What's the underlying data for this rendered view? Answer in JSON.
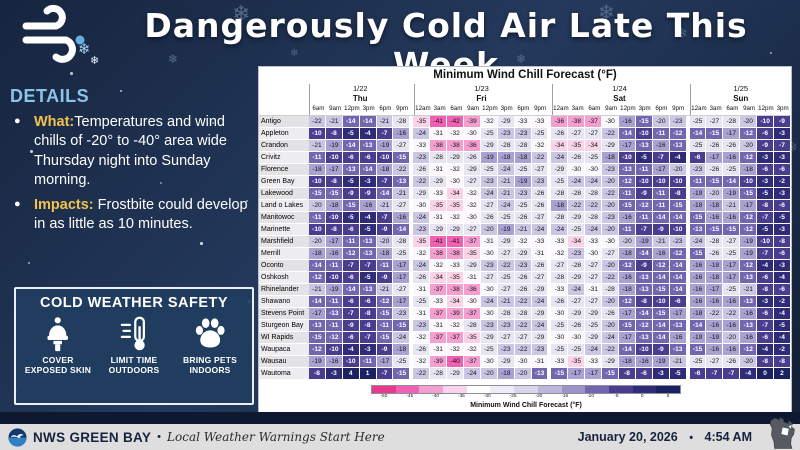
{
  "header": {
    "title": "Dangerously Cold Air Late This Week"
  },
  "details": {
    "heading": "DETAILS",
    "items": [
      {
        "lead": "What:",
        "text": "Temperatures and wind chills of -20° to -40° area wide Thursday night into Sunday morning."
      },
      {
        "lead": "Impacts:",
        "text": " Frostbite could develop in as little as 10 minutes."
      }
    ]
  },
  "safety": {
    "heading": "COLD WEATHER SAFETY",
    "items": [
      {
        "icon": "winter-hat-icon",
        "label": "COVER EXPOSED SKIN"
      },
      {
        "icon": "thermometer-icon",
        "label": "LIMIT TIME OUTDOORS"
      },
      {
        "icon": "paw-icon",
        "label": "BRING PETS INDOORS"
      }
    ]
  },
  "chart_data": {
    "type": "heatmap",
    "title": "Minimum Wind Chill Forecast (°F)",
    "day_groups": [
      {
        "date": "1/22",
        "day": "Thu",
        "times": [
          "6am",
          "9am",
          "12pm",
          "3pm",
          "6pm",
          "9pm"
        ]
      },
      {
        "date": "1/23",
        "day": "Fri",
        "times": [
          "12am",
          "3am",
          "6am",
          "9am",
          "12pm",
          "3pm",
          "6pm",
          "9pm"
        ]
      },
      {
        "date": "1/24",
        "day": "Sat",
        "times": [
          "12am",
          "3am",
          "6am",
          "9am",
          "12pm",
          "3pm",
          "6pm",
          "9pm"
        ]
      },
      {
        "date": "1/25",
        "day": "Sun",
        "times": [
          "12am",
          "3am",
          "6am",
          "9am",
          "12pm",
          "3pm"
        ]
      }
    ],
    "rows": [
      {
        "city": "Antigo",
        "values": [
          -22,
          -21,
          -14,
          -14,
          -21,
          -28,
          -35,
          -41,
          -42,
          -39,
          -32,
          -29,
          -33,
          -33,
          -36,
          -38,
          -37,
          -30,
          -16,
          -15,
          -20,
          -23,
          -25,
          -27,
          -28,
          -20,
          -10,
          -9
        ]
      },
      {
        "city": "Appleton",
        "values": [
          -10,
          -8,
          -5,
          -4,
          -7,
          -16,
          -24,
          -31,
          -32,
          -30,
          -25,
          -23,
          -23,
          -25,
          -26,
          -27,
          -27,
          -22,
          -14,
          -10,
          -11,
          -12,
          -14,
          -15,
          -17,
          -12,
          -6,
          -3
        ]
      },
      {
        "city": "Crandon",
        "values": [
          -21,
          -19,
          -14,
          -13,
          -19,
          -27,
          -33,
          -38,
          -38,
          -36,
          -29,
          -28,
          -28,
          -32,
          -34,
          -35,
          -34,
          -29,
          -17,
          -13,
          -16,
          -13,
          -25,
          -26,
          -26,
          -20,
          -9,
          -7
        ]
      },
      {
        "city": "Crivitz",
        "values": [
          -11,
          -10,
          -6,
          -6,
          -10,
          -15,
          -23,
          -28,
          -29,
          -26,
          -19,
          -18,
          -18,
          -22,
          -24,
          -26,
          -25,
          -18,
          -10,
          -5,
          -7,
          -4,
          -6,
          -17,
          -16,
          -12,
          -3,
          -3
        ]
      },
      {
        "city": "Florence",
        "values": [
          -18,
          -17,
          -13,
          -14,
          -18,
          -22,
          -26,
          -31,
          -32,
          -29,
          -25,
          -24,
          -25,
          -27,
          -29,
          -30,
          -30,
          -23,
          -13,
          -11,
          -17,
          -20,
          -23,
          -26,
          -25,
          -18,
          -6,
          -6
        ]
      },
      {
        "city": "Green Bay",
        "values": [
          -10,
          -8,
          -5,
          -3,
          -7,
          -13,
          -22,
          -29,
          -30,
          -27,
          -23,
          -21,
          -19,
          -23,
          -25,
          -24,
          -24,
          -20,
          -12,
          -10,
          -10,
          -10,
          -11,
          -15,
          -14,
          -10,
          -3,
          -2
        ]
      },
      {
        "city": "Lakewood",
        "values": [
          -15,
          -15,
          -9,
          -9,
          -14,
          -21,
          -29,
          -33,
          -34,
          -32,
          -24,
          -21,
          -23,
          -26,
          -28,
          -28,
          -28,
          -22,
          -11,
          -9,
          -11,
          -8,
          -19,
          -20,
          -19,
          -15,
          -5,
          -3
        ]
      },
      {
        "city": "Land o Lakes",
        "values": [
          -20,
          -18,
          -15,
          -16,
          -21,
          -27,
          -30,
          -35,
          -35,
          -32,
          -27,
          -24,
          -25,
          -26,
          -18,
          -22,
          -22,
          -20,
          -15,
          -12,
          -11,
          -15,
          -18,
          -18,
          -21,
          -17,
          -8,
          -6
        ]
      },
      {
        "city": "Manitowoc",
        "values": [
          -11,
          -10,
          -5,
          -4,
          -7,
          -16,
          -24,
          -31,
          -32,
          -30,
          -26,
          -25,
          -26,
          -27,
          -28,
          -29,
          -28,
          -23,
          -16,
          -11,
          -14,
          -14,
          -15,
          -16,
          -16,
          -12,
          -7,
          -5
        ]
      },
      {
        "city": "Marinette",
        "values": [
          -10,
          -8,
          -6,
          -5,
          -9,
          -14,
          -23,
          -29,
          -29,
          -27,
          -20,
          -19,
          -21,
          -24,
          -24,
          -25,
          -24,
          -20,
          -11,
          -7,
          -9,
          -10,
          -13,
          -15,
          -15,
          -12,
          -5,
          -3
        ]
      },
      {
        "city": "Marshfield",
        "values": [
          -20,
          -17,
          -11,
          -13,
          -20,
          -28,
          -35,
          -41,
          -41,
          -37,
          -31,
          -29,
          -32,
          -33,
          -33,
          -34,
          -33,
          -30,
          -20,
          -19,
          -21,
          -23,
          -24,
          -28,
          -27,
          -19,
          -10,
          -8
        ]
      },
      {
        "city": "Merrill",
        "values": [
          -18,
          -16,
          -12,
          -13,
          -18,
          -25,
          -32,
          -38,
          -38,
          -35,
          -30,
          -27,
          -29,
          -31,
          -32,
          -23,
          -30,
          -27,
          -18,
          -14,
          -16,
          -12,
          -15,
          -26,
          -25,
          -19,
          -7,
          -6
        ]
      },
      {
        "city": "Oconto",
        "values": [
          -14,
          -11,
          -7,
          -7,
          -11,
          -17,
          -24,
          -32,
          -33,
          -29,
          -23,
          -22,
          -23,
          -26,
          -27,
          -28,
          -27,
          -20,
          -12,
          -9,
          -12,
          -14,
          -16,
          -18,
          -17,
          -12,
          -4,
          -3
        ]
      },
      {
        "city": "Oshkosh",
        "values": [
          -12,
          -10,
          -6,
          -5,
          -9,
          -17,
          -26,
          -34,
          -35,
          -31,
          -27,
          -25,
          -26,
          -27,
          -28,
          -29,
          -27,
          -22,
          -16,
          -13,
          -14,
          -14,
          -16,
          -18,
          -17,
          -13,
          -6,
          -4
        ]
      },
      {
        "city": "Rhinelander",
        "values": [
          -21,
          -19,
          -14,
          -13,
          -21,
          -27,
          -31,
          -37,
          -38,
          -36,
          -30,
          -27,
          -26,
          -29,
          -33,
          -24,
          -31,
          -28,
          -18,
          -13,
          -15,
          -14,
          -16,
          -17,
          -25,
          -21,
          -8,
          -6
        ]
      },
      {
        "city": "Shawano",
        "values": [
          -14,
          -11,
          -6,
          -6,
          -12,
          -17,
          -25,
          -33,
          -34,
          -30,
          -24,
          -21,
          -22,
          -24,
          -26,
          -27,
          -27,
          -20,
          -12,
          -8,
          -10,
          -6,
          -16,
          -16,
          -16,
          -13,
          -3,
          -2
        ]
      },
      {
        "city": "Stevens Point",
        "values": [
          -17,
          -13,
          -7,
          -8,
          -15,
          -23,
          -31,
          -37,
          -39,
          -37,
          -30,
          -28,
          -28,
          -29,
          -30,
          -29,
          -29,
          -26,
          -17,
          -14,
          -15,
          -17,
          -18,
          -22,
          -22,
          -16,
          -6,
          -4
        ]
      },
      {
        "city": "Sturgeon Bay",
        "values": [
          -13,
          -11,
          -9,
          -8,
          -11,
          -15,
          -23,
          -31,
          -32,
          -28,
          -23,
          -23,
          -22,
          -24,
          -25,
          -26,
          -25,
          -20,
          -15,
          -12,
          -14,
          -13,
          -14,
          -16,
          -16,
          -13,
          -7,
          -5
        ]
      },
      {
        "city": "WI Rapids",
        "values": [
          -15,
          -12,
          -6,
          -7,
          -15,
          -24,
          -32,
          -37,
          -37,
          -35,
          -29,
          -27,
          -27,
          -29,
          -30,
          -30,
          -29,
          -24,
          -17,
          -13,
          -14,
          -16,
          -19,
          -19,
          -20,
          -16,
          -6,
          -4
        ]
      },
      {
        "city": "Waupaca",
        "values": [
          -12,
          -10,
          -4,
          -3,
          -9,
          -18,
          -26,
          -31,
          -32,
          -32,
          -25,
          -23,
          -22,
          -23,
          -25,
          -25,
          -24,
          -22,
          -14,
          -10,
          -9,
          -13,
          -15,
          -16,
          -16,
          -12,
          -4,
          -2
        ]
      },
      {
        "city": "Wausau",
        "values": [
          -19,
          -16,
          -10,
          -11,
          -17,
          -25,
          -32,
          -39,
          -40,
          -37,
          -30,
          -29,
          -30,
          -31,
          -33,
          -35,
          -33,
          -29,
          -18,
          -16,
          -19,
          -21,
          -25,
          -27,
          -26,
          -20,
          -8,
          -8
        ]
      },
      {
        "city": "Wautoma",
        "values": [
          -8,
          -3,
          4,
          1,
          -7,
          -15,
          -22,
          -28,
          -29,
          -24,
          -20,
          -18,
          -20,
          -13,
          -15,
          -17,
          -17,
          -15,
          -8,
          -6,
          -3,
          -5,
          -6,
          -7,
          -7,
          -4,
          0,
          2
        ]
      }
    ],
    "colorbar": {
      "ticks": [
        -50,
        -45,
        -40,
        -35,
        -30,
        -25,
        -20,
        -15,
        -10,
        -5,
        0,
        5
      ],
      "colors": [
        "#e73a8e",
        "#f160b2",
        "#f59fd0",
        "#fad3e9",
        "#ffffff",
        "#eeecf6",
        "#d9d5ea",
        "#bdb7db",
        "#9c93c8",
        "#7366b0",
        "#4a3d90",
        "#2f2b79",
        "#1c2161"
      ],
      "label": "Minimum Wind Chill Forecast (°F)"
    },
    "cell_colors": {
      "pink_coldest": "#f160b2",
      "light_pink": "#f59fd0",
      "pale_pink": "#fad3e9",
      "near_white": "#faf8fc",
      "pale_lavender": "#e8e5f3",
      "lavender": "#cbc6e3",
      "mid_lavender": "#a9a1d1",
      "purple": "#7366b0",
      "indigo": "#493d90",
      "navy": "#2f2b79",
      "dark_navy": "#1c2161"
    }
  },
  "footer": {
    "station": "NWS GREEN BAY",
    "separator": "•",
    "tagline": "Local Weather Warnings Start Here",
    "date": "January 20, 2026",
    "time": "4:54 AM"
  }
}
